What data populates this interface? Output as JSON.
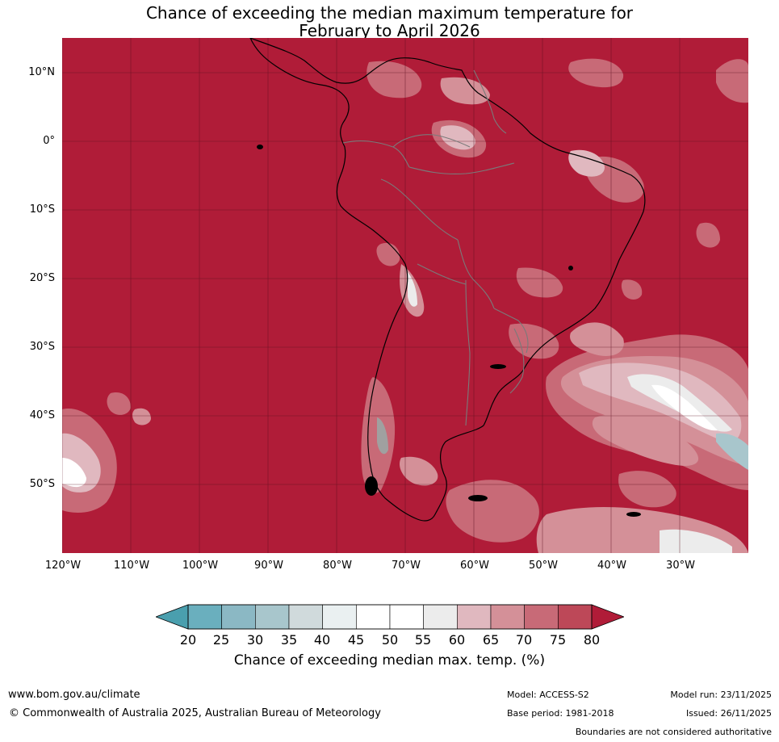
{
  "title": {
    "line1": "Chance of exceeding the median maximum temperature for",
    "line2": "February to April 2026"
  },
  "lat_labels": [
    "10°N",
    "0°",
    "10°S",
    "20°S",
    "30°S",
    "40°S",
    "50°S"
  ],
  "lon_labels": [
    "120°W",
    "110°W",
    "100°W",
    "90°W",
    "80°W",
    "70°W",
    "60°W",
    "50°W",
    "40°W",
    "30°W"
  ],
  "colorbar": {
    "ticks": [
      "20",
      "25",
      "30",
      "35",
      "40",
      "45",
      "50",
      "55",
      "60",
      "65",
      "70",
      "75",
      "80"
    ],
    "label": "Chance of exceeding median max. temp. (%)",
    "colors": {
      "below_20": "#4a9fae",
      "20_25": "#6aafbe",
      "25_30": "#8bb8c4",
      "30_35": "#a8c6cc",
      "35_40": "#d0dadc",
      "40_45": "#eaf0f1",
      "45_50": "#ffffff",
      "50_55": "#ffffff",
      "55_60": "#ececec",
      "60_65": "#e0b8bf",
      "65_70": "#d49098",
      "70_75": "#c86a77",
      "75_80": "#bd4858",
      "above_80": "#b01c38"
    }
  },
  "footer": {
    "website": "www.bom.gov.au/climate",
    "copyright": "© Commonwealth of Australia 2025, Australian Bureau of Meteorology",
    "model": "Model: ACCESS-S2",
    "model_run": "Model run: 23/11/2025",
    "base_period": "Base period: 1981-2018",
    "issued": "Issued: 26/11/2025",
    "disclaimer": "Boundaries are not considered authoritative"
  }
}
